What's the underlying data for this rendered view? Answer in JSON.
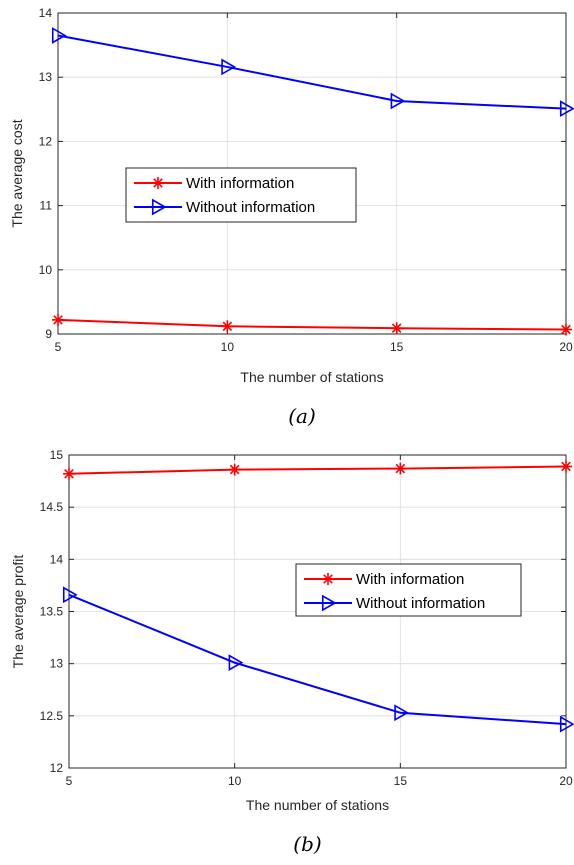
{
  "chart_data": [
    {
      "type": "line",
      "caption": "(a)",
      "xlabel": "The number of stations",
      "ylabel": "The average cost",
      "x": [
        5,
        10,
        15,
        20
      ],
      "xlim": [
        5,
        20
      ],
      "ylim": [
        9,
        14
      ],
      "xticks": [
        5,
        10,
        15,
        20
      ],
      "yticks": [
        9,
        10,
        11,
        12,
        13,
        14
      ],
      "ytick_labels": [
        "9",
        "10",
        "11",
        "12",
        "13",
        "14"
      ],
      "grid": true,
      "legend_position": "center-left",
      "series": [
        {
          "name": "With information",
          "values": [
            9.22,
            9.12,
            9.09,
            9.07
          ],
          "color": "#ff0000",
          "marker": "asterisk"
        },
        {
          "name": "Without information",
          "values": [
            13.65,
            13.16,
            12.63,
            12.51
          ],
          "color": "#0000ff",
          "marker": "triangle-right"
        }
      ]
    },
    {
      "type": "line",
      "caption": "(b)",
      "xlabel": "The number of stations",
      "ylabel": "The average profit",
      "x": [
        5,
        10,
        15,
        20
      ],
      "xlim": [
        5,
        20
      ],
      "ylim": [
        12,
        15
      ],
      "xticks": [
        5,
        10,
        15,
        20
      ],
      "yticks": [
        12,
        12.5,
        13,
        13.5,
        14,
        14.5,
        15
      ],
      "ytick_labels": [
        "12",
        "12.5",
        "13",
        "13.5",
        "14",
        "14.5",
        "15"
      ],
      "grid": true,
      "legend_position": "center-right",
      "series": [
        {
          "name": "With information",
          "values": [
            14.82,
            14.86,
            14.87,
            14.89
          ],
          "color": "#ff0000",
          "marker": "asterisk"
        },
        {
          "name": "Without information",
          "values": [
            13.66,
            13.01,
            12.53,
            12.42
          ],
          "color": "#0000ff",
          "marker": "triangle-right"
        }
      ]
    }
  ]
}
